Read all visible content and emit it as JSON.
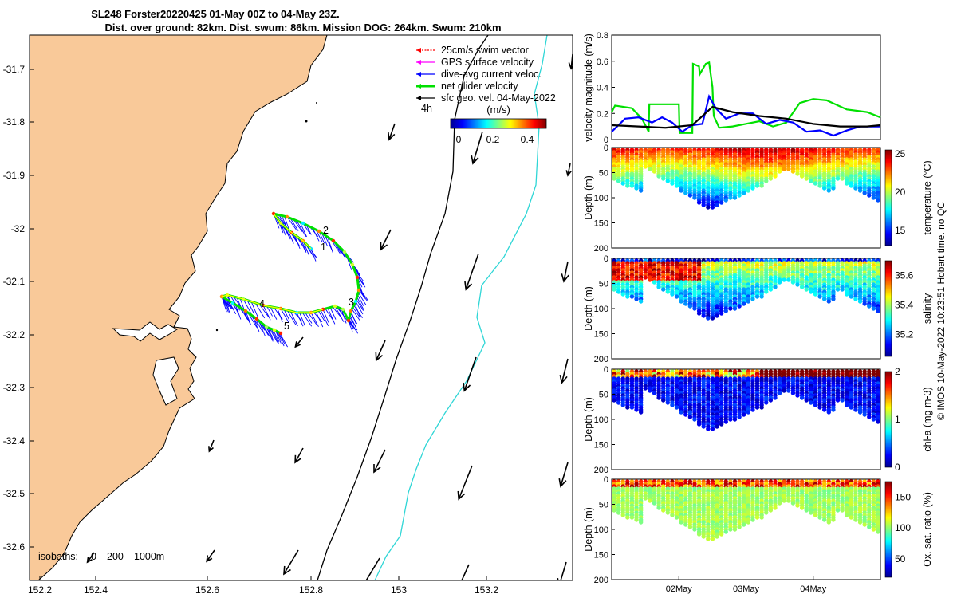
{
  "title": {
    "line1": "SL248 Forster20220425 01-May 00Z to 04-May 23Z.",
    "line2": "Dist. over ground: 82km. Dist. swum: 86km. Mission DOG: 264km. Swum: 210km"
  },
  "map": {
    "lon_ticks": [
      "152.2",
      "152.4",
      "152.6",
      "152.8",
      "153",
      "153.2"
    ],
    "lat_ticks": [
      "-31.7",
      "-31.8",
      "-31.9",
      "-32",
      "-32.1",
      "-32.2",
      "-32.3",
      "-32.4",
      "-32.5",
      "-32.6"
    ],
    "isobaths_label": "isobaths:",
    "isobath_values": [
      "0",
      "200",
      "1000m"
    ],
    "legend": [
      {
        "label": "25cm/s swim vector",
        "color": "#ff0000"
      },
      {
        "label": "GPS surface velocity",
        "color": "#ff00ff"
      },
      {
        "label": "dive-avg current veloc.",
        "color": "#0000ff"
      },
      {
        "label": "net glider velocity",
        "color": "#00e000"
      },
      {
        "label": "sfc geo. vel. 04-May-2022",
        "color": "#000000"
      }
    ],
    "time_marker": "4h",
    "colorbar": {
      "unit": "(m/s)",
      "ticks": [
        "0",
        "0.2",
        "0.4"
      ]
    },
    "waypoints": [
      "1",
      "2",
      "3",
      "4",
      "5"
    ],
    "colors": {
      "land": "#f9c999",
      "coast": "#000000",
      "isobath200": "#000000",
      "isobath1000": "#2fd6d6",
      "track": "#00e000"
    }
  },
  "chart_data": [
    {
      "type": "line",
      "ylabel": "velocity magnitude (m/s)",
      "ylim": [
        0,
        0.8
      ],
      "yticks": [
        "0",
        "0.2",
        "0.4",
        "0.6",
        "0.8"
      ],
      "xlim_days": [
        0,
        4
      ],
      "series": [
        {
          "name": "net glider velocity",
          "color": "#00e000",
          "x": [
            0,
            0.05,
            0.3,
            0.45,
            0.55,
            0.56,
            0.9,
            1.0,
            1.01,
            1.2,
            1.21,
            1.3,
            1.31,
            1.4,
            1.45,
            1.5,
            1.51,
            1.52,
            1.6,
            1.8,
            2.0,
            2.2,
            2.4,
            2.6,
            2.65,
            2.8,
            3.0,
            3.2,
            3.5,
            3.8,
            4.0
          ],
          "y": [
            0.21,
            0.26,
            0.24,
            0.16,
            0.06,
            0.27,
            0.27,
            0.27,
            0.05,
            0.05,
            0.58,
            0.56,
            0.5,
            0.58,
            0.59,
            0.4,
            0.27,
            0.18,
            0.09,
            0.1,
            0.12,
            0.14,
            0.1,
            0.13,
            0.17,
            0.28,
            0.31,
            0.3,
            0.23,
            0.21,
            0.17
          ]
        },
        {
          "name": "dive-avg current",
          "color": "#0000ff",
          "x": [
            0,
            0.2,
            0.4,
            0.6,
            0.75,
            0.9,
            1.05,
            1.2,
            1.35,
            1.45,
            1.55,
            1.7,
            1.9,
            2.1,
            2.3,
            2.5,
            2.7,
            2.9,
            3.1,
            3.3,
            3.5,
            3.7,
            3.9,
            4.0
          ],
          "y": [
            0.06,
            0.16,
            0.17,
            0.13,
            0.17,
            0.13,
            0.06,
            0.11,
            0.12,
            0.33,
            0.24,
            0.16,
            0.2,
            0.2,
            0.12,
            0.15,
            0.13,
            0.06,
            0.07,
            0.03,
            0.07,
            0.1,
            0.1,
            0.1
          ]
        },
        {
          "name": "sfc geo. vel.",
          "color": "#000000",
          "x": [
            0,
            0.4,
            0.8,
            1.2,
            1.5,
            1.8,
            2.2,
            2.6,
            3.0,
            3.4,
            3.8,
            4.0
          ],
          "y": [
            0.11,
            0.1,
            0.09,
            0.11,
            0.25,
            0.21,
            0.18,
            0.16,
            0.12,
            0.1,
            0.1,
            0.11
          ]
        }
      ]
    },
    {
      "type": "scatter",
      "ylabel": "Depth (m)",
      "clabel": "temperature (°C)",
      "yticks": [
        "0",
        "50",
        "100",
        "150",
        "200"
      ],
      "cticks": [
        "15",
        "20",
        "25"
      ],
      "crange": [
        13,
        25.5
      ]
    },
    {
      "type": "scatter",
      "ylabel": "Depth (m)",
      "clabel": "salinity",
      "yticks": [
        "0",
        "50",
        "100",
        "150",
        "200"
      ],
      "cticks": [
        "35.2",
        "35.4",
        "35.6"
      ],
      "crange": [
        35.05,
        35.7
      ]
    },
    {
      "type": "scatter",
      "ylabel": "Depth (m)",
      "clabel": "chl-a (mg m-3)",
      "yticks": [
        "0",
        "50",
        "100",
        "150",
        "200"
      ],
      "cticks": [
        "0",
        "1",
        "2"
      ],
      "crange": [
        0,
        2
      ]
    },
    {
      "type": "scatter",
      "ylabel": "Depth (m)",
      "clabel": "Ox. sat. ratio (%)",
      "yticks": [
        "0",
        "50",
        "100",
        "150",
        "200"
      ],
      "cticks": [
        "50",
        "100",
        "150"
      ],
      "crange": [
        20,
        175
      ],
      "xticks": [
        "02May",
        "03May",
        "04May"
      ]
    }
  ],
  "footer": "© IMOS 10-May-2022 10:23:51 Hobart time. no QC"
}
